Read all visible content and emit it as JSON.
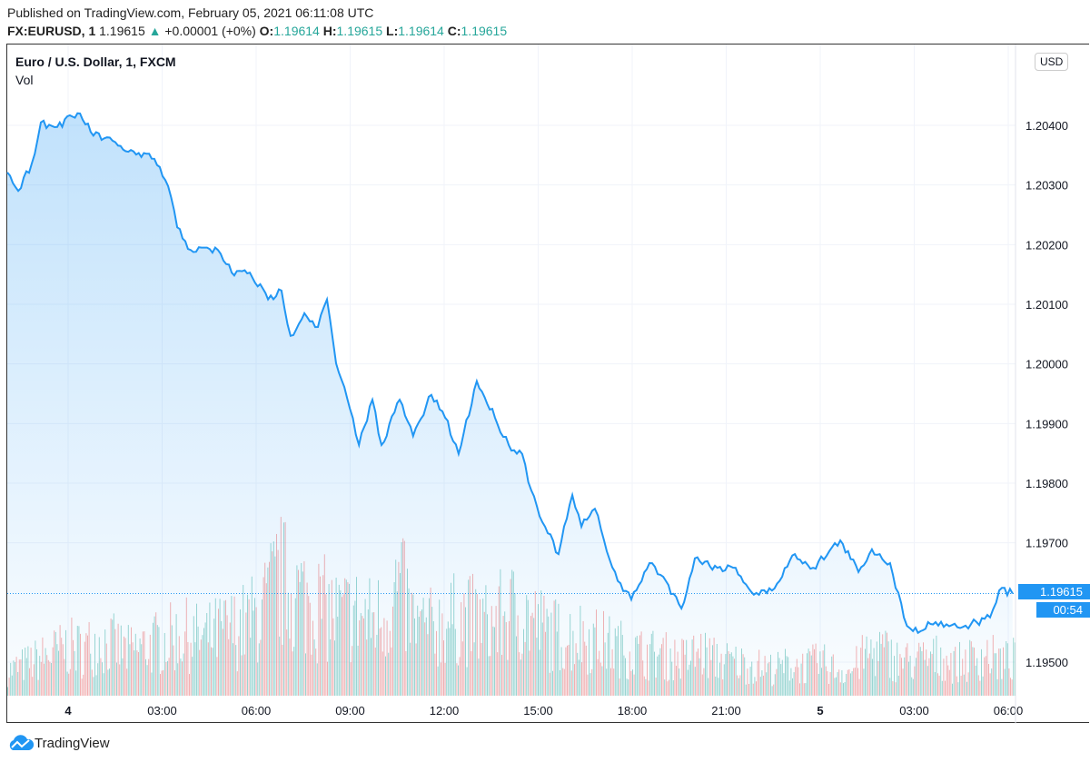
{
  "header": {
    "published": "Published on TradingView.com, February 05, 2021 06:11:08 UTC",
    "symbol": "FX:EURUSD, 1",
    "last": "1.19615",
    "change": "+0.00001 (+0%)",
    "o_label": "O:",
    "o": "1.19614",
    "h_label": "H:",
    "h": "1.19615",
    "l_label": "L:",
    "l": "1.19614",
    "c_label": "C:",
    "c": "1.19615"
  },
  "legend": {
    "title": "Euro / U.S. Dollar, 1, FXCM",
    "vol": "Vol"
  },
  "currency_button": "USD",
  "price_tag": "1.19615",
  "countdown": "00:54",
  "footer": {
    "brand": "TradingView"
  },
  "colors": {
    "line": "#2196f3",
    "up": "#26a69a",
    "down": "#ef5350",
    "grid": "#f0f3fa"
  },
  "chart_data": {
    "type": "area",
    "title": "Euro / U.S. Dollar, 1, FXCM",
    "ylim": [
      1.1944,
      1.2051
    ],
    "y_ticks": [
      "1.20400",
      "1.20300",
      "1.20200",
      "1.20100",
      "1.20000",
      "1.19900",
      "1.19800",
      "1.19700",
      "1.19500"
    ],
    "y_tick_values": [
      1.204,
      1.203,
      1.202,
      1.201,
      1.2,
      1.199,
      1.198,
      1.197,
      1.195
    ],
    "x_ticks": [
      {
        "label": "4",
        "hour": 0,
        "bold": true
      },
      {
        "label": "03:00",
        "hour": 3
      },
      {
        "label": "06:00",
        "hour": 6
      },
      {
        "label": "09:00",
        "hour": 9
      },
      {
        "label": "12:00",
        "hour": 12
      },
      {
        "label": "15:00",
        "hour": 15
      },
      {
        "label": "18:00",
        "hour": 18
      },
      {
        "label": "21:00",
        "hour": 21
      },
      {
        "label": "5",
        "hour": 24,
        "bold": true
      },
      {
        "label": "03:00",
        "hour": 27
      },
      {
        "label": "06:00",
        "hour": 30
      }
    ],
    "xlabel_unit": "hours from Feb 4 00:00 UTC",
    "series": [
      {
        "name": "EURUSD",
        "points": [
          [
            -1.94,
            1.20321
          ],
          [
            -1.59,
            1.2029
          ],
          [
            -1.16,
            1.20336
          ],
          [
            -0.87,
            1.20405
          ],
          [
            -0.43,
            1.20397
          ],
          [
            0.38,
            1.2042
          ],
          [
            0.72,
            1.20389
          ],
          [
            1.59,
            1.20366
          ],
          [
            2.17,
            1.20351
          ],
          [
            2.75,
            1.20344
          ],
          [
            3.19,
            1.20298
          ],
          [
            3.48,
            1.20229
          ],
          [
            3.91,
            1.20191
          ],
          [
            4.78,
            1.20191
          ],
          [
            5.22,
            1.20153
          ],
          [
            5.8,
            1.20153
          ],
          [
            6.38,
            1.20108
          ],
          [
            6.81,
            1.20123
          ],
          [
            7.1,
            1.20047
          ],
          [
            7.54,
            1.20085
          ],
          [
            7.97,
            1.20062
          ],
          [
            8.26,
            1.20108
          ],
          [
            8.55,
            1.20001
          ],
          [
            8.99,
            1.19925
          ],
          [
            9.28,
            1.19864
          ],
          [
            9.71,
            1.1994
          ],
          [
            10.0,
            1.19864
          ],
          [
            10.58,
            1.1994
          ],
          [
            11.01,
            1.19879
          ],
          [
            11.59,
            1.19948
          ],
          [
            12.03,
            1.1991
          ],
          [
            12.46,
            1.19849
          ],
          [
            13.04,
            1.19971
          ],
          [
            13.62,
            1.1991
          ],
          [
            14.06,
            1.19864
          ],
          [
            14.49,
            1.19849
          ],
          [
            14.78,
            1.19788
          ],
          [
            15.22,
            1.19727
          ],
          [
            15.65,
            1.19681
          ],
          [
            16.09,
            1.1978
          ],
          [
            16.38,
            1.19727
          ],
          [
            16.81,
            1.19757
          ],
          [
            17.1,
            1.19704
          ],
          [
            17.54,
            1.19636
          ],
          [
            17.97,
            1.19605
          ],
          [
            18.55,
            1.19666
          ],
          [
            18.99,
            1.19643
          ],
          [
            19.57,
            1.1959
          ],
          [
            20.0,
            1.19674
          ],
          [
            20.72,
            1.19658
          ],
          [
            21.3,
            1.19658
          ],
          [
            21.88,
            1.19613
          ],
          [
            22.46,
            1.1962
          ],
          [
            23.19,
            1.19681
          ],
          [
            23.77,
            1.19658
          ],
          [
            24.64,
            1.19704
          ],
          [
            25.22,
            1.19651
          ],
          [
            25.65,
            1.19689
          ],
          [
            26.23,
            1.19666
          ],
          [
            26.67,
            1.19575
          ],
          [
            26.96,
            1.19552
          ],
          [
            27.68,
            1.19567
          ],
          [
            28.55,
            1.19559
          ],
          [
            29.42,
            1.19575
          ],
          [
            29.71,
            1.1962
          ],
          [
            30.14,
            1.19615
          ]
        ]
      }
    ],
    "volume": [
      20,
      25,
      30,
      35,
      40,
      38,
      45,
      42,
      36,
      40,
      44,
      48,
      50,
      46,
      52,
      55,
      60,
      70,
      95,
      85,
      78,
      72,
      65,
      68,
      62,
      66,
      90,
      58,
      55,
      60,
      64,
      62,
      58,
      66,
      70,
      60,
      52,
      48,
      50,
      46,
      42,
      38,
      35,
      34,
      32,
      30,
      36,
      30,
      28,
      26,
      24,
      22,
      26,
      24,
      28,
      22,
      20,
      34,
      38,
      30,
      28,
      30,
      32,
      26,
      30,
      34,
      28,
      30
    ]
  }
}
